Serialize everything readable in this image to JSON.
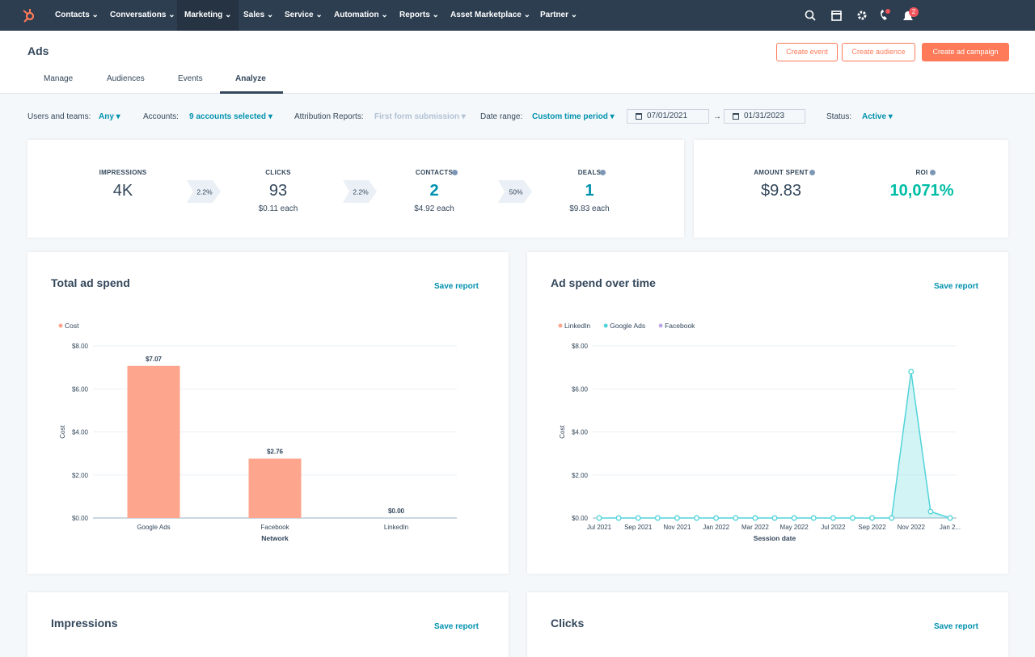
{
  "nav": {
    "items": [
      "Contacts",
      "Conversations",
      "Marketing",
      "Sales",
      "Service",
      "Automation",
      "Reports",
      "Asset Marketplace",
      "Partner"
    ],
    "active": "Marketing",
    "badge": "2"
  },
  "header": {
    "title": "Ads",
    "buttons": [
      "Create event",
      "Create audience",
      "Create ad campaign"
    ],
    "tabs": [
      "Manage",
      "Audiences",
      "Events",
      "Analyze"
    ],
    "active_tab": "Analyze"
  },
  "filters": {
    "items": [
      {
        "label": "Users and teams:",
        "value": "Any"
      },
      {
        "label": "Accounts:",
        "value": "9 accounts selected"
      },
      {
        "label": "Attribution Reports:",
        "value": "First form submission"
      },
      {
        "label": "Date range:",
        "value": "Custom time period"
      }
    ],
    "date_from": "07/01/2021",
    "date_to": "01/31/2023",
    "status": {
      "label": "Status:",
      "value": "Active"
    }
  },
  "funnel": {
    "items": [
      {
        "label": "IMPRESSIONS",
        "value": "4K"
      },
      {
        "label": "CLICKS",
        "value": "93",
        "sub": "$0.11 each"
      },
      {
        "label": "CONTACTS",
        "value": "2",
        "sub": "$4.92 each"
      },
      {
        "label": "DEALS",
        "value": "1",
        "sub": "$9.83 each"
      }
    ],
    "rates": [
      "2.2%",
      "2.2%",
      "50%"
    ]
  },
  "summary": [
    {
      "label": "AMOUNT SPENT",
      "value": "$9.83"
    },
    {
      "label": "ROI",
      "value": "10,071%"
    }
  ],
  "charts": [
    {
      "type": "bar",
      "title": "Total ad spend",
      "action": "Save report",
      "y_label": "Cost",
      "x_label": "Network",
      "categories": [
        "Google Ads",
        "Facebook",
        "LinkedIn"
      ],
      "series": [
        {
          "name": "Cost",
          "color": "#fea58e",
          "values": [
            7.07,
            2.76,
            0
          ],
          "value_labels": [
            "$7.07",
            "$2.76",
            "$0.00"
          ]
        }
      ],
      "ylim": [
        0,
        8
      ],
      "yticks": [
        {
          "value": 0,
          "label": "$0.00"
        },
        {
          "value": 2,
          "label": "$2.00"
        },
        {
          "value": 4,
          "label": "$4.00"
        },
        {
          "value": 6,
          "label": "$6.00"
        },
        {
          "value": 8,
          "label": "$8.00"
        }
      ],
      "grid": true
    },
    {
      "type": "line",
      "title": "Ad spend over time",
      "action": "Save report",
      "y_label": "Cost",
      "x_label": "Session date",
      "categories": [
        "Jul 2021",
        null,
        "Sep 2021",
        null,
        "Nov 2021",
        null,
        "Jan 2022",
        null,
        "Mar 2022",
        null,
        "May 2022",
        null,
        "Jul 2022",
        null,
        "Sep 2022",
        null,
        "Nov 2022",
        null,
        "Jan 2..."
      ],
      "series": [
        {
          "name": "LinkedIn",
          "color": "#fea58e",
          "values": [
            null,
            null,
            null,
            null,
            null,
            null,
            null,
            null,
            null,
            null,
            null,
            null,
            null,
            null,
            null,
            null,
            null,
            null,
            null
          ]
        },
        {
          "name": "Google Ads",
          "color": "#51d3d9",
          "values": [
            0,
            0,
            0,
            0,
            0,
            0,
            0,
            0,
            0,
            0,
            0,
            0,
            0,
            0,
            0,
            0,
            6.8,
            0.3,
            0
          ]
        },
        {
          "name": "Facebook",
          "color": "#bda9ea",
          "values": [
            null,
            null,
            null,
            null,
            null,
            null,
            null,
            null,
            null,
            null,
            null,
            null,
            null,
            null,
            null,
            null,
            null,
            null,
            null
          ]
        }
      ],
      "ylim": [
        0,
        8
      ],
      "yticks": [
        {
          "value": 0,
          "label": "$0.00"
        },
        {
          "value": 2,
          "label": "$2.00"
        },
        {
          "value": 4,
          "label": "$4.00"
        },
        {
          "value": 6,
          "label": "$6.00"
        },
        {
          "value": 8,
          "label": "$8.00"
        }
      ],
      "grid": true
    }
  ],
  "more_cards": [
    {
      "title": "Impressions",
      "action": "Save report"
    },
    {
      "title": "Clicks",
      "action": "Save report"
    }
  ]
}
